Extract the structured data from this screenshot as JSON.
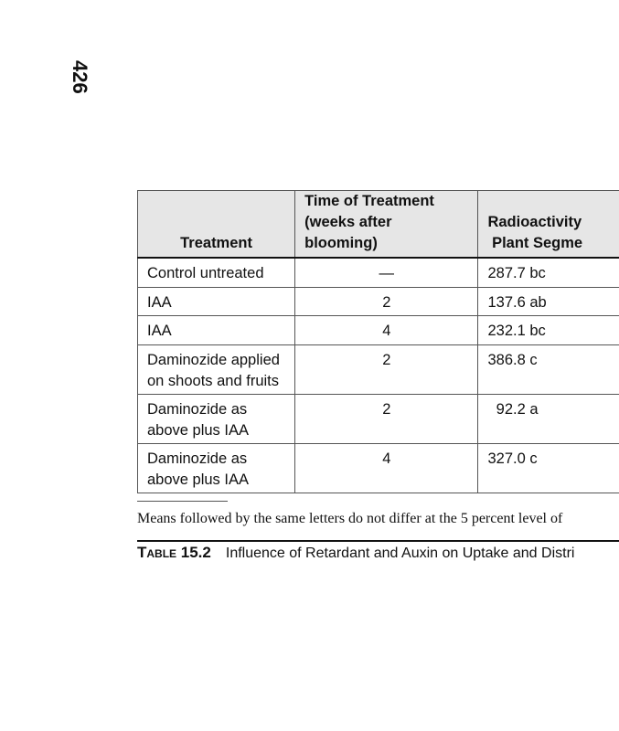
{
  "page_number": "426",
  "table": {
    "headers": [
      "Treatment",
      "Time of Treatment\n(weeks after blooming)",
      "Radioactivity\nPlant Segme"
    ],
    "header_lines": {
      "col1": [
        "Treatment"
      ],
      "col2": [
        "Time of Treatment",
        "(weeks after blooming)"
      ],
      "col3": [
        "Radioactivity",
        "Plant Segme"
      ]
    },
    "rows": [
      {
        "treatment": [
          "Control untreated"
        ],
        "time": "—",
        "radioactivity": "287.7 bc"
      },
      {
        "treatment": [
          "IAA"
        ],
        "time": "2",
        "radioactivity": "137.6 ab"
      },
      {
        "treatment": [
          "IAA"
        ],
        "time": "4",
        "radioactivity": "232.1 bc"
      },
      {
        "treatment": [
          "Daminozide applied",
          "on shoots and fruits"
        ],
        "time": "2",
        "radioactivity": "386.8 c"
      },
      {
        "treatment": [
          "Daminozide as",
          "above plus IAA"
        ],
        "time": "2",
        "radioactivity": "  92.2 a"
      },
      {
        "treatment": [
          "Daminozide as",
          "above plus IAA"
        ],
        "time": "4",
        "radioactivity": "327.0 c"
      }
    ]
  },
  "footnote": "Means followed by the same letters do not differ at the 5 percent level of",
  "caption": {
    "label": "Table 15.2",
    "text": "Influence of Retardant and Auxin on Uptake and Distri"
  }
}
